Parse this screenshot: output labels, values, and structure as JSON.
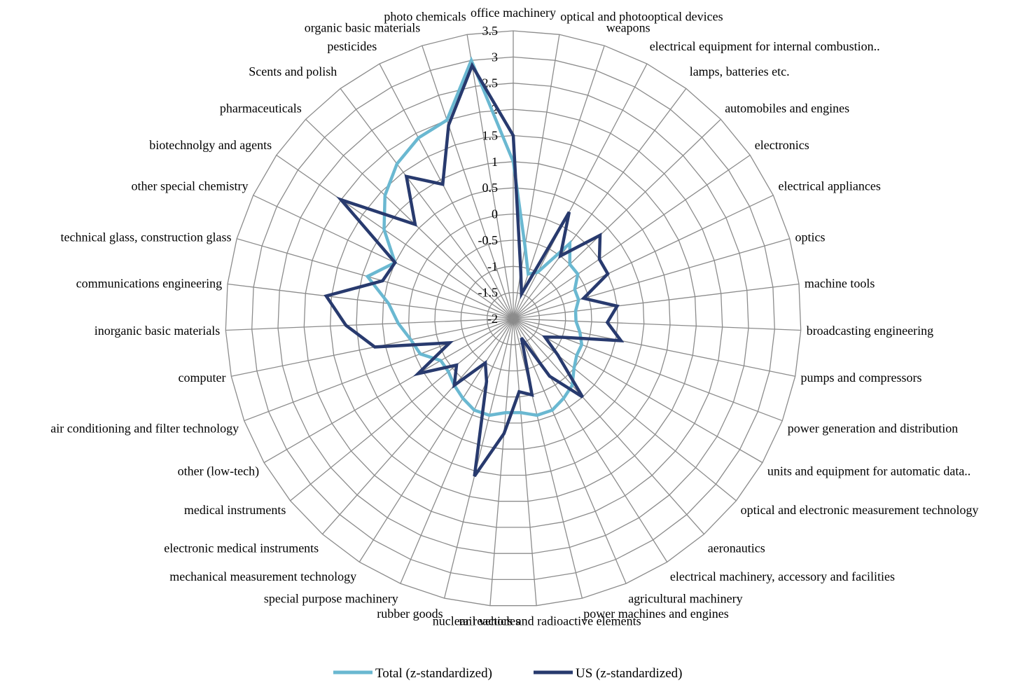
{
  "chart_data": {
    "type": "radar",
    "categories": [
      "office machinery",
      "optical and photooptical devices",
      "weapons",
      "electrical equipment for internal combustion..",
      "lamps, batteries etc.",
      "automobiles and engines",
      "electronics",
      "electrical appliances",
      "optics",
      "machine tools",
      "broadcasting engineering",
      "pumps and compressors",
      "power generation and distribution",
      "units and equipment for automatic data..",
      "optical and electronic measurement technology",
      "aeronautics",
      "electrical machinery, accessory and facilities",
      "agricultural machinery",
      "power machines and engines",
      "nuclear reactors and radioactive elements",
      "rail vehicles",
      "rubber goods",
      "special purpose machinery",
      "mechanical measurement technology",
      "electronic medical instruments",
      "medical instruments",
      "other (low-tech)",
      "air conditioning and filter technology",
      "computer",
      "inorganic basic materials",
      "communications engineering",
      "technical glass, construction glass",
      "other special chemistry",
      "biotechnolgy and agents",
      "pharmaceuticals",
      "Scents and polish",
      "pesticides",
      "organic basic materials",
      "photo chemicals"
    ],
    "series": [
      {
        "name": "Total (z-standardized)",
        "color": "#6ab8d1",
        "values": [
          1.0,
          -0.6,
          -1.1,
          -1.0,
          -0.2,
          -0.5,
          -0.5,
          -0.7,
          -0.7,
          -0.8,
          -0.8,
          -0.7,
          -0.6,
          -0.6,
          -0.5,
          -0.3,
          -0.2,
          -0.1,
          -0.1,
          -0.2,
          -0.2,
          -0.1,
          -0.1,
          -0.2,
          -0.3,
          -0.4,
          -0.4,
          -0.1,
          0.0,
          0.2,
          0.4,
          0.9,
          0.5,
          1.0,
          1.4,
          1.7,
          1.9,
          2.0,
          3.0
        ]
      },
      {
        "name": "US (z-standardized)",
        "color": "#283a6e",
        "values": [
          1.5,
          -1.1,
          -1.5,
          0.3,
          -0.5,
          0.3,
          0.0,
          0.0,
          -0.6,
          0.0,
          -0.2,
          0.1,
          -1.0,
          -1.3,
          -0.9,
          0.0,
          -0.7,
          -1.6,
          -0.5,
          -0.6,
          0.2,
          1.1,
          -0.7,
          -1.0,
          -0.3,
          -0.6,
          0.1,
          -0.7,
          0.7,
          1.2,
          1.6,
          0.6,
          0.5,
          2.0,
          0.6,
          1.4,
          0.9,
          1.9,
          2.9
        ]
      }
    ],
    "axis": {
      "min": -2,
      "max": 3.5,
      "step": 0.5,
      "tick_labels": [
        "-2",
        "-1.5",
        "-1",
        "-0.5",
        "0",
        "0.5",
        "1",
        "1.5",
        "2",
        "2.5",
        "3",
        "3.5"
      ]
    },
    "grid": true,
    "grid_color": "#8c8c8c",
    "legend_placement": "bottom"
  }
}
